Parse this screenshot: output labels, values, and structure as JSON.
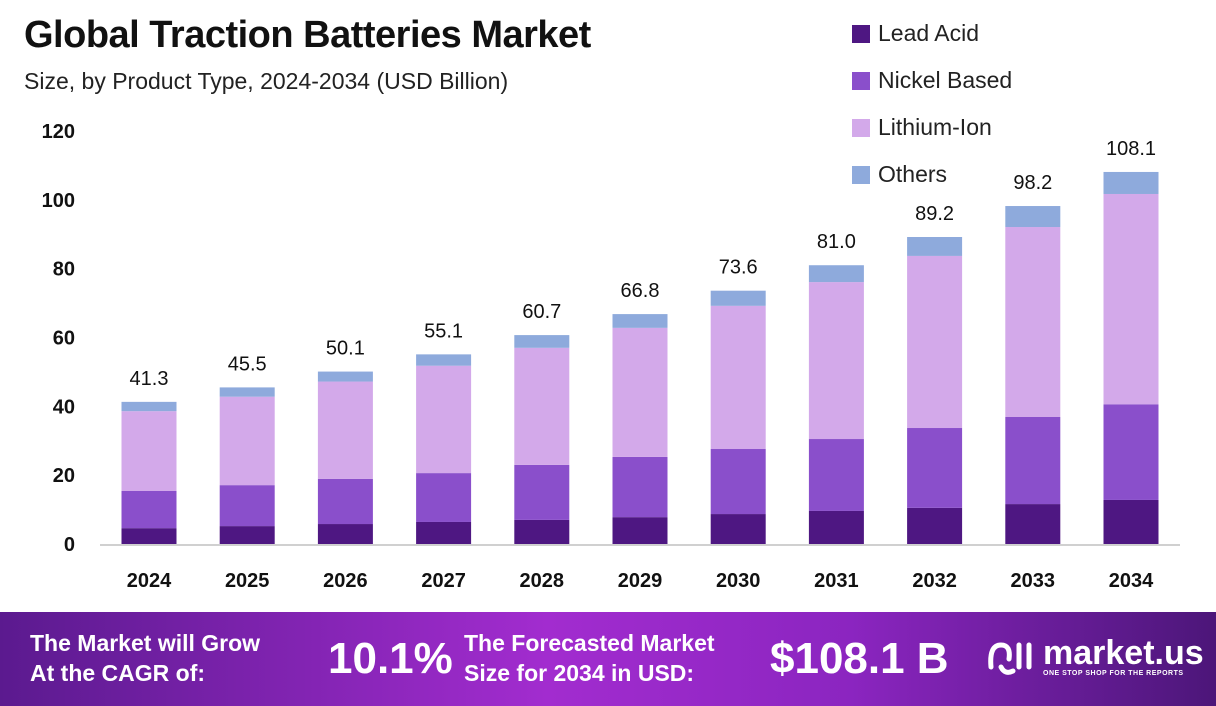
{
  "chart_data": {
    "type": "bar",
    "stacked": true,
    "title": "Global Traction Batteries Market",
    "subtitle": "Size, by Product Type, 2024-2034 (USD Billion)",
    "xlabel": "",
    "ylabel": "",
    "ylim": [
      0,
      120
    ],
    "yticks": [
      0,
      20,
      40,
      60,
      80,
      100,
      120
    ],
    "grid": false,
    "legend_position": "top-right",
    "categories": [
      "2024",
      "2025",
      "2026",
      "2027",
      "2028",
      "2029",
      "2030",
      "2031",
      "2032",
      "2033",
      "2034"
    ],
    "series": [
      {
        "name": "Lead Acid",
        "color": "#4e1782",
        "values": [
          4.6,
          5.2,
          5.8,
          6.4,
          7.0,
          7.8,
          8.7,
          9.6,
          10.5,
          11.6,
          12.8
        ]
      },
      {
        "name": "Nickel Based",
        "color": "#8a4fcb",
        "values": [
          10.8,
          11.9,
          13.1,
          14.2,
          16.0,
          17.5,
          18.9,
          20.9,
          23.2,
          25.3,
          27.8
        ]
      },
      {
        "name": "Lithium-Ion",
        "color": "#d3a9ea",
        "values": [
          23.2,
          25.7,
          28.3,
          31.2,
          34.0,
          37.5,
          41.6,
          45.6,
          50.0,
          55.2,
          61.1
        ]
      },
      {
        "name": "Others",
        "color": "#8eaadc",
        "values": [
          2.7,
          2.7,
          2.9,
          3.3,
          3.7,
          4.0,
          4.4,
          4.9,
          5.5,
          6.1,
          6.4
        ]
      }
    ],
    "totals": [
      "41.3",
      "45.5",
      "50.1",
      "55.1",
      "60.7",
      "66.8",
      "73.6",
      "81.0",
      "89.2",
      "98.2",
      "108.1"
    ]
  },
  "banner": {
    "cagr_label_line1": "The Market will Grow",
    "cagr_label_line2": "At the CAGR of:",
    "cagr_value": "10.1%",
    "forecast_label_line1": "The Forecasted Market",
    "forecast_label_line2": "Size for 2034 in USD:",
    "forecast_value": "$108.1 B",
    "logo_name": "market.us",
    "logo_tagline": "ONE STOP SHOP FOR THE REPORTS"
  }
}
